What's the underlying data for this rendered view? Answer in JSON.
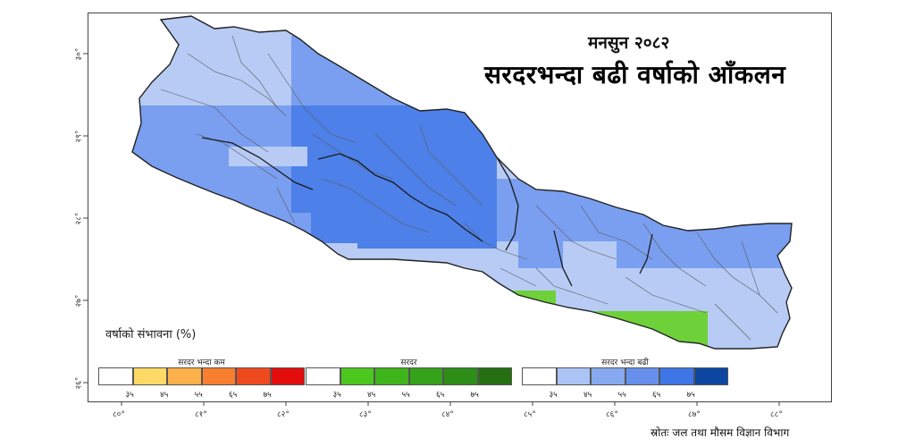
{
  "title": "मनसुन २०८२",
  "subtitle": "सरदरभन्दा बढी वर्षाको आँकलन",
  "legend": {
    "title": "वर्षाको संभावना (%)",
    "groups": [
      {
        "label": "सरदर भन्दा कम",
        "colors": [
          "#ffffff",
          "#ffd966",
          "#fcb04a",
          "#f77f2f",
          "#ef4a1e",
          "#e30d0d"
        ],
        "numbers": [
          "३५",
          "४५",
          "५५",
          "६५",
          "७५"
        ]
      },
      {
        "label": "सरदर",
        "colors": [
          "#ffffff",
          "#4cc71e",
          "#3fb41b",
          "#36a11a",
          "#2d8d17",
          "#246f12"
        ],
        "numbers": [
          "३५",
          "४५",
          "५५",
          "६५",
          "७५"
        ]
      },
      {
        "label": "सरदर भन्दा बढी",
        "colors": [
          "#ffffff",
          "#a9c4f5",
          "#86a9f0",
          "#6690ec",
          "#3f75e6",
          "#0d47a1"
        ],
        "numbers": [
          "३५",
          "४५",
          "५५",
          "६५",
          "७५"
        ]
      }
    ]
  },
  "longitude_labels": [
    "८०°",
    "८१°",
    "८२°",
    "८३°",
    "८४°",
    "८५°",
    "८६°",
    "८७°",
    "८८°"
  ],
  "latitude_labels": [
    "३०°",
    "२९°",
    "२८°",
    "२७°",
    "२६°"
  ],
  "source": "स्रोतः जल तथा मौसम विज्ञान विभाग",
  "colors": {
    "light_blue": "#b7cbf5",
    "mid_blue": "#7a9ff0",
    "dark_blue": "#4d80e8",
    "green": "#6ed13a",
    "border": "#3a3a3a"
  }
}
